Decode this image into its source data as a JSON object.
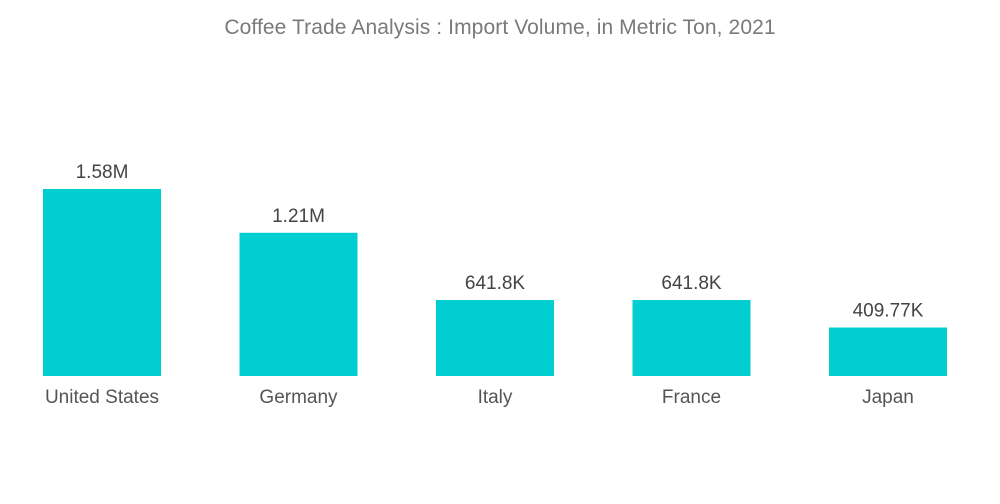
{
  "chart_data": {
    "type": "bar",
    "title": "Coffee Trade Analysis : Import Volume, in Metric Ton, 2021",
    "categories": [
      "United States",
      "Germany",
      "Italy",
      "France",
      "Japan"
    ],
    "values": [
      1580000,
      1210000,
      641800,
      641800,
      409770
    ],
    "value_labels": [
      "1.58M",
      "1.21M",
      "641.8K",
      "641.8K",
      "409.77K"
    ],
    "xlabel": "",
    "ylabel": "",
    "ylim": [
      0,
      1580000
    ],
    "grid": false,
    "legend": "none",
    "bar_color": "#00CED1"
  }
}
